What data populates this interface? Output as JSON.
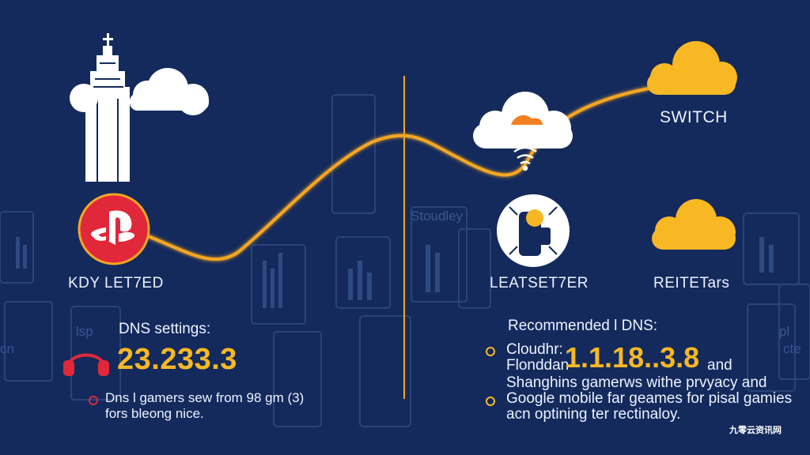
{
  "left": {
    "label": "KDY LET7ED",
    "heading": "DNS settings:",
    "dns_value": "23.233.3",
    "note_line1": "Dns l gamers sew from 98 gm (3)",
    "note_line2": "fors bleong nice."
  },
  "center": {
    "label": "LEATSET7ER",
    "watermark": "Stoudley",
    "heading": "Recommended l DNS:",
    "row1_label": "Cloudhr:",
    "row2_label": "Flonddan",
    "dns_value": "1.1.18..3.8",
    "dns_suffix": "and",
    "row3": "Shanghins gamerws withe prvyacy and",
    "row4": "Google mobile far geames for pisal gamies",
    "row5": "acn optining ter rectinaloy."
  },
  "right": {
    "top_label": "SWITCH",
    "label": "REITETars"
  },
  "bg_left": {
    "line1": "lsp",
    "line2": "cn"
  },
  "bg_right": {
    "line1": "pl",
    "line2": "cte"
  },
  "watermark": "九零云资讯网",
  "colors": {
    "background": "#142a5c",
    "accent": "#f7b824",
    "line": "#f5a623",
    "playstation": "#e0283a",
    "cloud": "#ffffff"
  },
  "icons": [
    "playstation-icon",
    "cloudflare-cloud-icon",
    "wifi-icon",
    "controller-icon",
    "headphones-icon",
    "tower-icon"
  ]
}
